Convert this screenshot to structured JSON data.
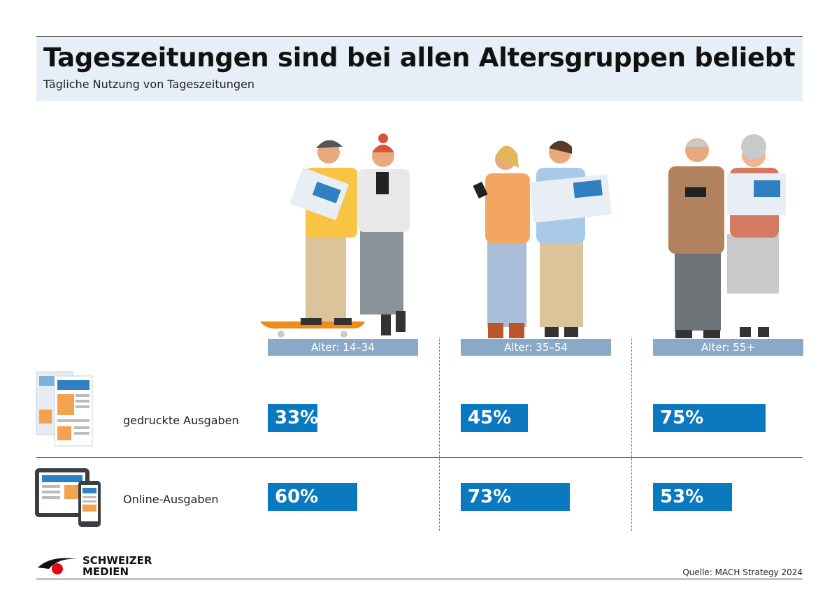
{
  "header": {
    "title": "Tageszeitungen sind bei allen Altersgruppen beliebt",
    "subtitle": "Tägliche Nutzung von Tageszeitungen"
  },
  "groups": [
    {
      "label": "Alter: 14–34"
    },
    {
      "label": "Alter: 35–54"
    },
    {
      "label": "Alter: 55+"
    }
  ],
  "rows": [
    {
      "label": "gedruckte Ausgaben",
      "icon": "printed-newspaper-icon"
    },
    {
      "label": "Online-Ausgaben",
      "icon": "tablet-phone-icon"
    }
  ],
  "chart_data": {
    "type": "bar",
    "categories": [
      "Alter: 14–34",
      "Alter: 35–54",
      "Alter: 55+"
    ],
    "series": [
      {
        "name": "gedruckte Ausgaben",
        "values": [
          33,
          45,
          75
        ],
        "labels": [
          "33%",
          "45%",
          "75%"
        ]
      },
      {
        "name": "Online-Ausgaben",
        "values": [
          60,
          73,
          53
        ],
        "labels": [
          "60%",
          "73%",
          "53%"
        ]
      }
    ],
    "unit": "%",
    "ylim": [
      0,
      100
    ],
    "color": "#0b79bf",
    "title": "Tageszeitungen sind bei allen Altersgruppen beliebt",
    "subtitle": "Tägliche Nutzung von Tageszeitungen"
  },
  "footer": {
    "logo_line1": "SCHWEIZER",
    "logo_line2": "MEDIEN",
    "source": "Quelle: MACH Strategy 2024"
  },
  "colors": {
    "bar": "#0b79bf",
    "age_label_bg": "#8aa8c8",
    "header_bg": "#e6eef8",
    "logo_red": "#e30613"
  }
}
